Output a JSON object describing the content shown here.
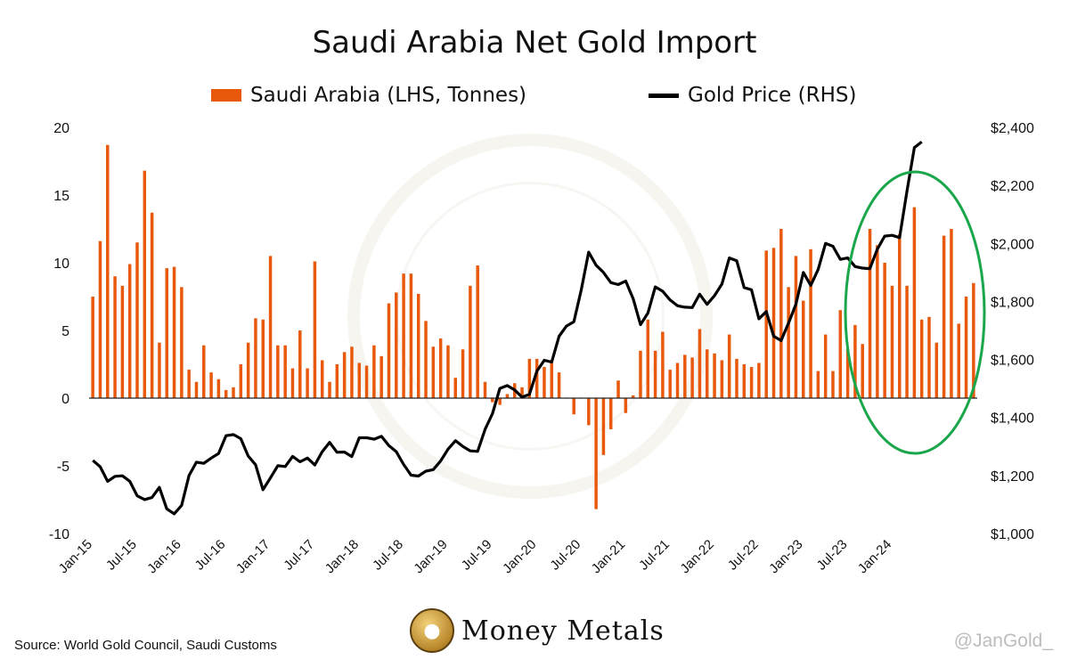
{
  "chart_data": {
    "type": "bar+line",
    "title": "Saudi Arabia Net Gold Import",
    "legend": {
      "placement": "top",
      "entries": [
        "Saudi Arabia (LHS, Tonnes)",
        "Gold Price (RHS)"
      ]
    },
    "colors": {
      "bars": "#e8590c",
      "line": "#000000",
      "ellipse": "#1aa64a"
    },
    "x_tick_labels": [
      "Jan-15",
      "Jul-15",
      "Jan-16",
      "Jul-16",
      "Jan-17",
      "Jul-17",
      "Jan-18",
      "Jul-18",
      "Jan-19",
      "Jul-19",
      "Jan-20",
      "Jul-20",
      "Jan-21",
      "Jul-21",
      "Jan-22",
      "Jul-22",
      "Jan-23",
      "Jul-23",
      "Jan-24"
    ],
    "left_axis": {
      "range": [
        -10,
        20
      ],
      "ticks": [
        "-10",
        "-5",
        "0",
        "5",
        "10",
        "15",
        "20"
      ]
    },
    "right_axis": {
      "range": [
        1000,
        2400
      ],
      "ticks": [
        "$1,000",
        "$1,200",
        "$1,400",
        "$1,600",
        "$1,800",
        "$2,000",
        "$2,200",
        "$2,400"
      ]
    },
    "grid": false,
    "series": [
      {
        "name": "Saudi Arabia (LHS, Tonnes)",
        "axis": "left",
        "kind": "bar",
        "start": "Jan-15",
        "values": [
          7.5,
          11.6,
          18.7,
          9,
          8.3,
          9.9,
          11.5,
          16.8,
          13.7,
          4.1,
          9.6,
          9.7,
          8.2,
          2.1,
          1.2,
          3.9,
          1.9,
          1.4,
          0.6,
          0.8,
          2.5,
          4.1,
          5.9,
          5.8,
          10.5,
          3.9,
          3.9,
          2.2,
          5,
          2.2,
          10.1,
          2.8,
          1.2,
          2.5,
          3.4,
          3.8,
          2.6,
          2.4,
          3.9,
          3.1,
          7,
          7.8,
          9.2,
          9.2,
          7.7,
          5.7,
          3.8,
          4.4,
          3.9,
          1.5,
          3.6,
          8.3,
          9.8,
          1.2,
          -0.3,
          -0.5,
          0.3,
          1.1,
          0.8,
          2.9,
          2.9,
          2.3,
          2.6,
          1.9,
          0,
          -1.2,
          0,
          -2,
          -8.2,
          -4.2,
          -2.3,
          1.3,
          -1.1,
          0.2,
          3.5,
          5.8,
          3.5,
          4.9,
          2.1,
          2.6,
          3.2,
          3,
          5.1,
          3.6,
          3.3,
          2.8,
          4.7,
          2.9,
          2.5,
          2.3,
          2.6,
          10.9,
          11.1,
          12.5,
          8.2,
          10.5,
          7.2,
          11,
          2,
          4.7,
          2,
          6.5,
          3.6,
          5.4,
          4,
          12.5,
          11.3,
          10,
          8.3,
          12.1,
          8.3,
          14.1,
          5.8,
          6,
          4.1,
          12,
          12.5,
          5.5,
          7.5,
          8.5
        ]
      },
      {
        "name": "Gold Price (RHS)",
        "axis": "right",
        "kind": "line",
        "start": "Jan-15",
        "values": [
          1252,
          1230,
          1180,
          1197,
          1199,
          1180,
          1130,
          1117,
          1124,
          1159,
          1085,
          1068,
          1097,
          1200,
          1246,
          1242,
          1260,
          1276,
          1337,
          1341,
          1327,
          1267,
          1237,
          1151,
          1192,
          1234,
          1231,
          1266,
          1247,
          1260,
          1236,
          1282,
          1314,
          1280,
          1281,
          1265,
          1330,
          1330,
          1325,
          1335,
          1303,
          1282,
          1238,
          1201,
          1198,
          1215,
          1220,
          1250,
          1291,
          1320,
          1300,
          1285,
          1283,
          1359,
          1413,
          1500,
          1510,
          1495,
          1470,
          1480,
          1560,
          1597,
          1591,
          1680,
          1715,
          1730,
          1840,
          1970,
          1925,
          1900,
          1865,
          1858,
          1870,
          1810,
          1720,
          1760,
          1850,
          1835,
          1805,
          1785,
          1780,
          1779,
          1825,
          1790,
          1820,
          1860,
          1950,
          1940,
          1848,
          1840,
          1740,
          1765,
          1680,
          1665,
          1725,
          1790,
          1900,
          1855,
          1910,
          2000,
          1990,
          1945,
          1950,
          1920,
          1915,
          1913,
          1980,
          2025,
          2028,
          2020,
          2180,
          2330,
          2350
        ]
      }
    ],
    "annotation": {
      "shape": "ellipse",
      "color": "#1aa64a",
      "note": "circles 2023–2024 region"
    }
  },
  "source_label": "Source: World Gold Council, Saudi Customs",
  "logo_text": "Money Metals",
  "handle": "@JanGold_"
}
